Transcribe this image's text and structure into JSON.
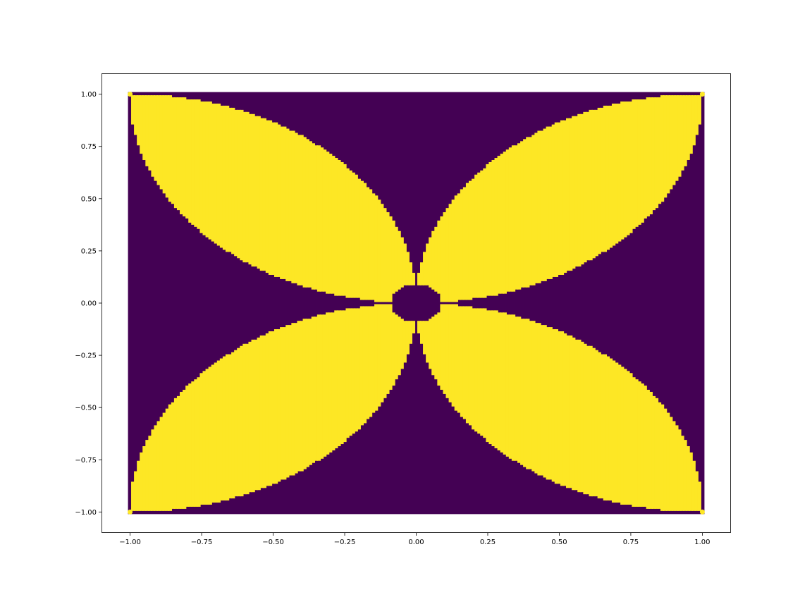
{
  "chart_data": {
    "type": "scatter",
    "description_marks": "dense grid of points colored by class (0 = outside petals, 1 = inside petals) forming a four-petal pattern",
    "title": "",
    "xlabel": "",
    "ylabel": "",
    "xlim": [
      -1.1,
      1.1
    ],
    "ylim": [
      -1.1,
      1.1
    ],
    "grid": false,
    "legend": "none",
    "x_ticks": [
      -1.0,
      -0.75,
      -0.5,
      -0.25,
      0.0,
      0.25,
      0.5,
      0.75,
      1.0
    ],
    "y_ticks": [
      -1.0,
      -0.75,
      -0.5,
      -0.25,
      0.0,
      0.25,
      0.5,
      0.75,
      1.0
    ],
    "x_tick_labels": [
      "−1.00",
      "−0.75",
      "−0.50",
      "−0.25",
      "0.00",
      "0.25",
      "0.50",
      "0.75",
      "1.00"
    ],
    "y_tick_labels": [
      "−1.00",
      "−0.75",
      "−0.50",
      "−0.25",
      "0.00",
      "0.25",
      "0.50",
      "0.75",
      "1.00"
    ],
    "x_range": [
      -1.0,
      1.0
    ],
    "y_range": [
      -1.0,
      1.0
    ],
    "classes": [
      {
        "label": 0,
        "color": "#440154"
      },
      {
        "label": 1,
        "color": "#fde725"
      }
    ],
    "petal_region_rule": "point is class 1 when |x|^2 + ... approximately: inside four lens-shaped petals spanning from origin to each corner"
  }
}
